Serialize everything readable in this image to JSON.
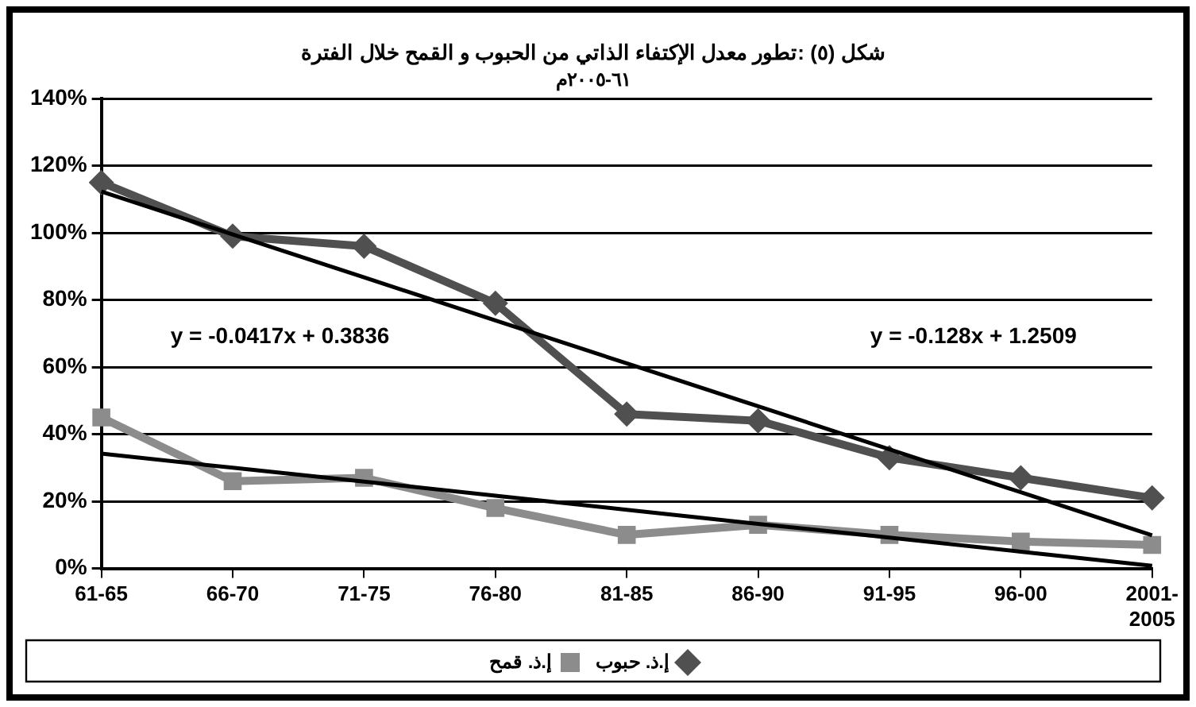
{
  "chart_data": {
    "type": "line",
    "title": "شكل (٥) :تطور معدل الإكتفاء الذاتي من الحبوب و القمح خلال الفترة",
    "subtitle": "٦١-٢٠٠٥م",
    "categories": [
      "61-65",
      "66-70",
      "71-75",
      "76-80",
      "81-85",
      "86-90",
      "91-95",
      "96-00",
      "2001-2005"
    ],
    "series": [
      {
        "name": "إ.ذ. حبوب",
        "color": "#505050",
        "marker": "diamond",
        "values": [
          115,
          99,
          96,
          79,
          46,
          44,
          33,
          27,
          21
        ]
      },
      {
        "name": "إ.ذ. قمح",
        "color": "#8c8c8c",
        "marker": "square",
        "values": [
          45,
          26,
          27,
          18,
          10,
          13,
          10,
          8,
          7
        ]
      },
      {
        "color": "#000000",
        "marker": "none",
        "values": [
          112.3,
          99.5,
          86.7,
          73.9,
          61.1,
          48.3,
          35.5,
          22.7,
          9.9
        ]
      },
      {
        "color": "#000000",
        "marker": "none",
        "values": [
          34.2,
          30.0,
          25.9,
          21.7,
          17.5,
          13.3,
          9.2,
          5.0,
          0.8
        ]
      }
    ],
    "ylim": [
      0,
      140
    ],
    "yticks": [
      {
        "value": 0,
        "label": "0%"
      },
      {
        "value": 20,
        "label": "20%"
      },
      {
        "value": 40,
        "label": "40%"
      },
      {
        "value": 60,
        "label": "60%"
      },
      {
        "value": 80,
        "label": "80%"
      },
      {
        "value": 100,
        "label": "100%"
      },
      {
        "value": 120,
        "label": "120%"
      },
      {
        "value": 140,
        "label": "140%"
      }
    ],
    "grid": "y",
    "legend": "bottom",
    "line_style": "solid",
    "annotations": [
      "y = -0.0417x + 0.3836",
      "y = -0.128x + 1.2509"
    ]
  }
}
